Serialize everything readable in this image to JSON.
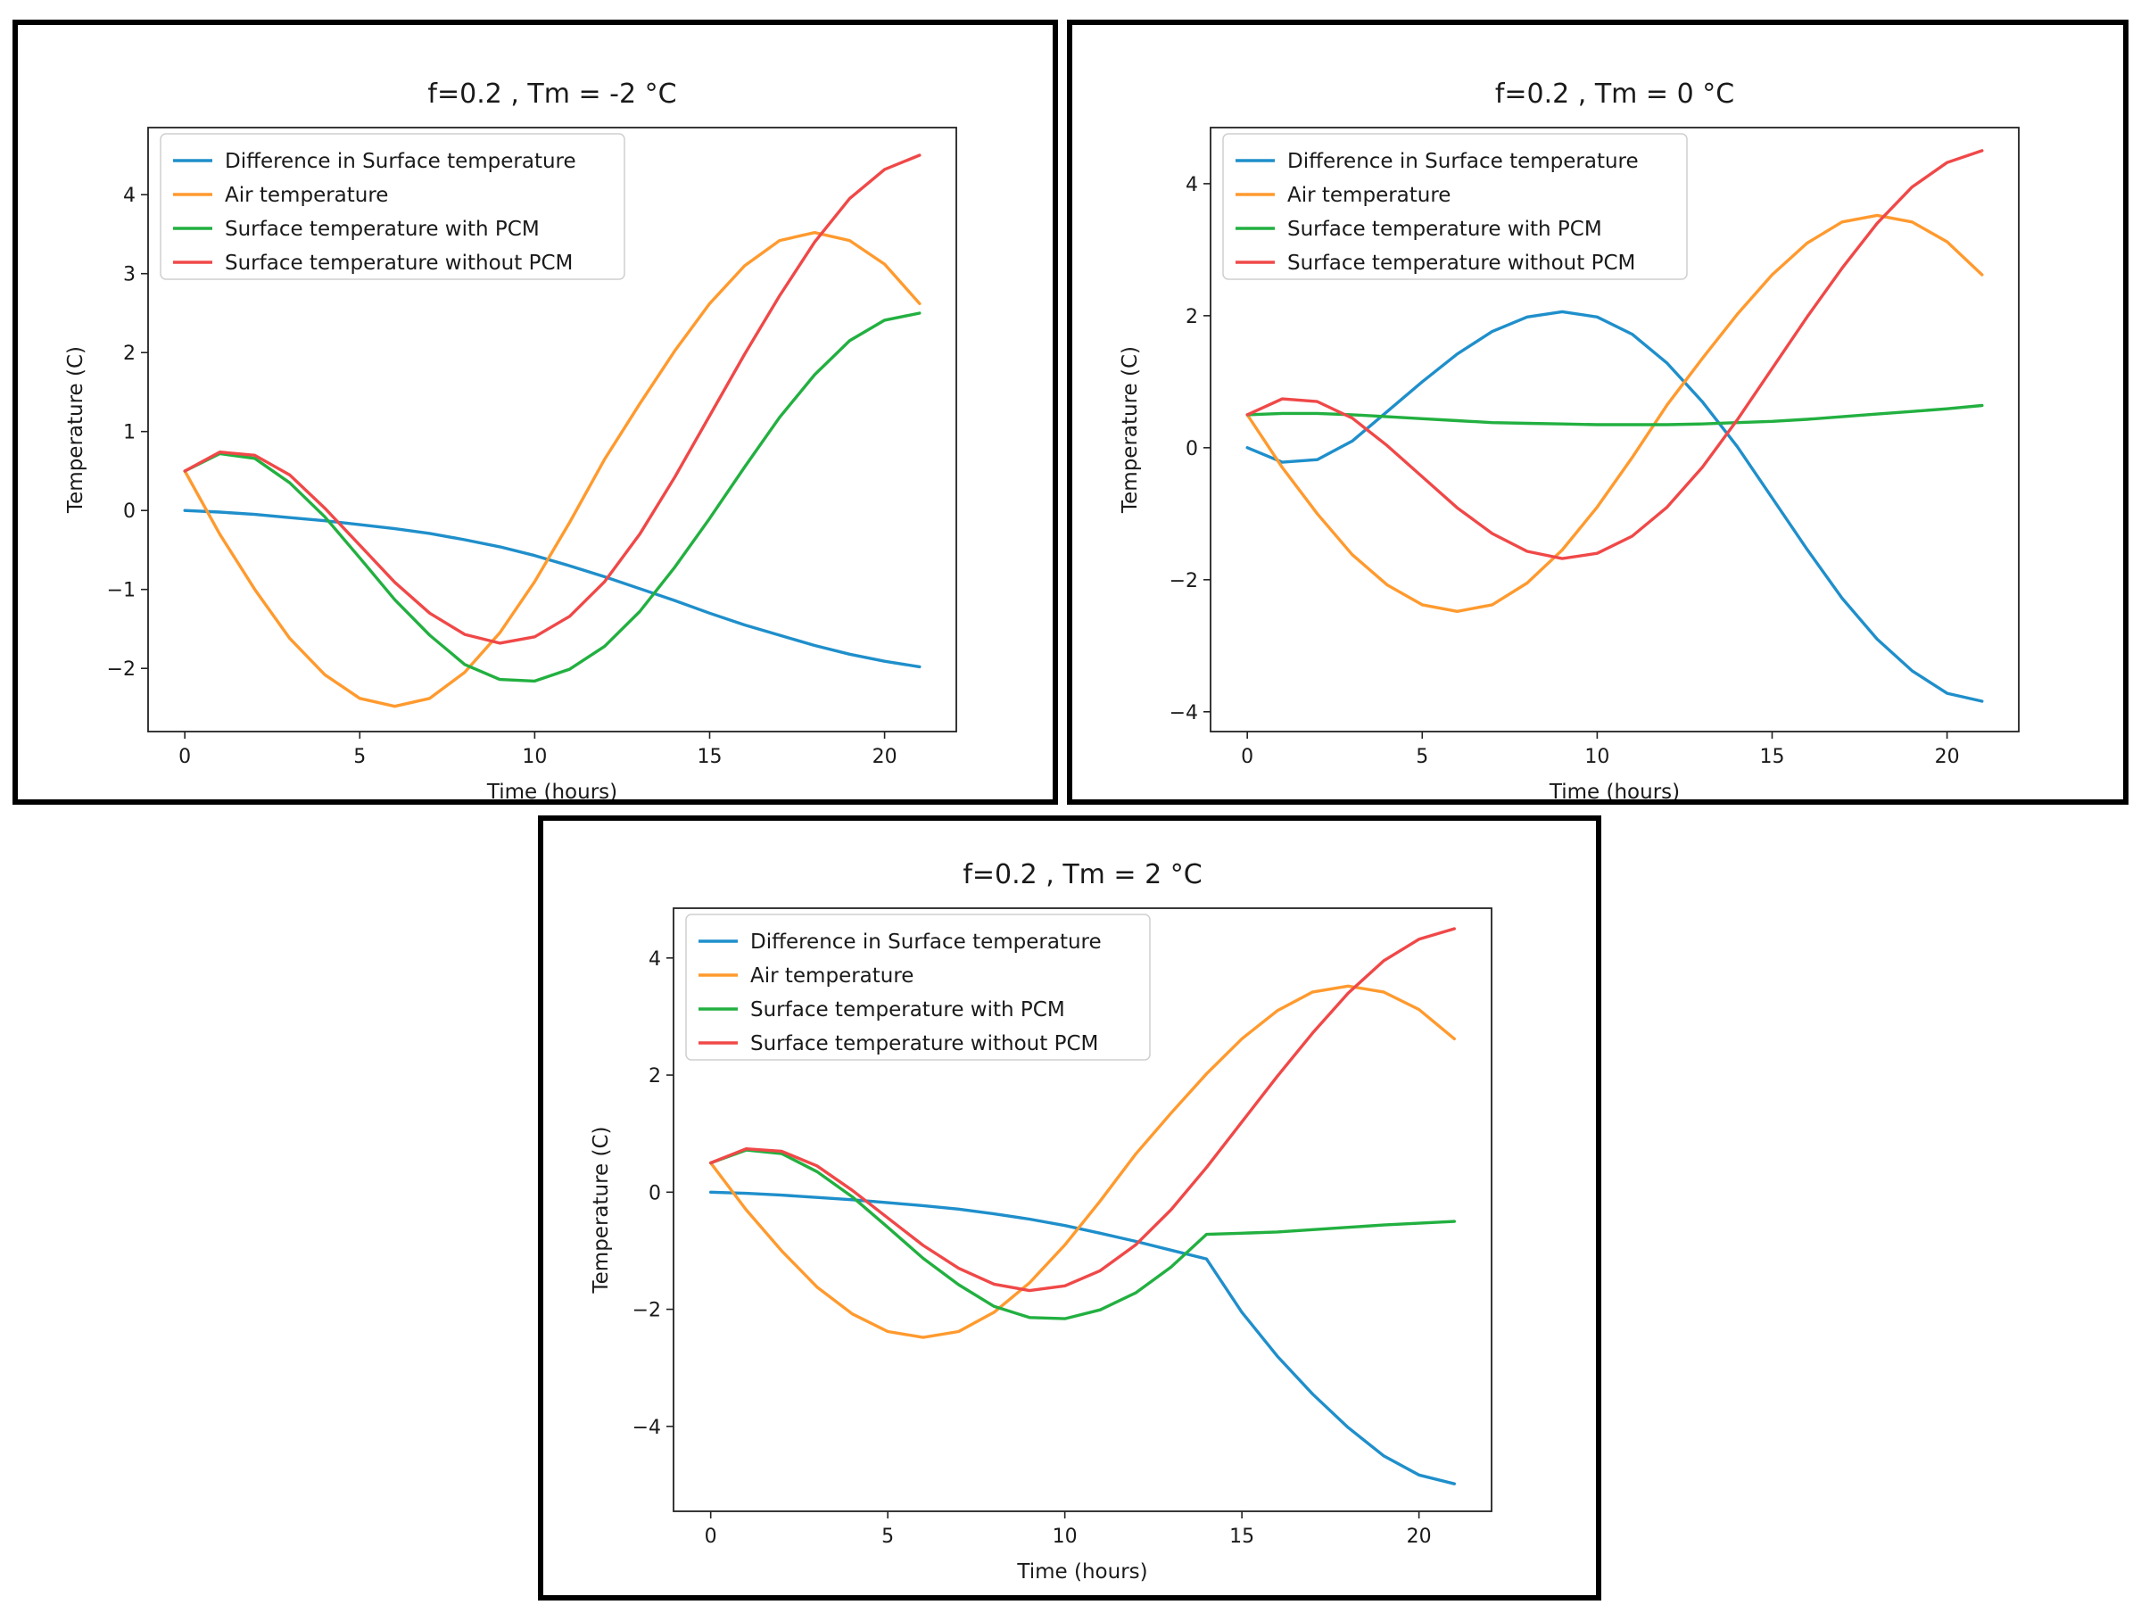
{
  "figure": {
    "panels": [
      "f=0.2 , Tm = -2 °C",
      "f=0.2 , Tm = 0 °C",
      "f=0.2 , Tm = 2 °C"
    ]
  },
  "colors": {
    "difference": "#1f8fcb",
    "air": "#ff9a2e",
    "with_pcm": "#22b040",
    "without_pcm": "#f04848",
    "frame": "#000000"
  },
  "chart_data": [
    {
      "type": "line",
      "title": "f=0.2 , Tm = -2 °C",
      "xlabel": "Time (hours)",
      "ylabel": "Temperature (C)",
      "xlim": [
        -1.05,
        22.05
      ],
      "ylim": [
        -2.8,
        4.85
      ],
      "xticks": [
        0,
        5,
        10,
        15,
        20
      ],
      "xtick_labels": [
        "0",
        "5",
        "10",
        "15",
        "20"
      ],
      "yticks": [
        -2,
        -1,
        0,
        1,
        2,
        3,
        4
      ],
      "ytick_labels": [
        "−2",
        "−1",
        "0",
        "1",
        "2",
        "3",
        "4"
      ],
      "legend_position": "upper left",
      "grid": false,
      "x": [
        0,
        1,
        2,
        3,
        4,
        5,
        6,
        7,
        8,
        9,
        10,
        11,
        12,
        13,
        14,
        15,
        16,
        17,
        18,
        19,
        20,
        21
      ],
      "series": [
        {
          "name": "Difference in Surface temperature",
          "color_key": "difference",
          "values": [
            0.0,
            -0.02,
            -0.05,
            -0.09,
            -0.13,
            -0.18,
            -0.23,
            -0.29,
            -0.37,
            -0.46,
            -0.57,
            -0.7,
            -0.84,
            -0.99,
            -1.14,
            -1.3,
            -1.45,
            -1.58,
            -1.71,
            -1.82,
            -1.91,
            -1.98
          ]
        },
        {
          "name": "Air temperature",
          "color_key": "air",
          "values": [
            0.5,
            -0.3,
            -1.0,
            -1.62,
            -2.08,
            -2.38,
            -2.48,
            -2.38,
            -2.05,
            -1.55,
            -0.9,
            -0.15,
            0.65,
            1.35,
            2.02,
            2.62,
            3.1,
            3.42,
            3.52,
            3.42,
            3.12,
            2.62
          ]
        },
        {
          "name": "Surface temperature with PCM",
          "color_key": "with_pcm",
          "values": [
            0.5,
            0.72,
            0.66,
            0.35,
            -0.08,
            -0.6,
            -1.13,
            -1.58,
            -1.95,
            -2.14,
            -2.16,
            -2.01,
            -1.72,
            -1.28,
            -0.72,
            -0.1,
            0.55,
            1.18,
            1.72,
            2.15,
            2.41,
            2.5
          ]
        },
        {
          "name": "Surface temperature without PCM",
          "color_key": "without_pcm",
          "values": [
            0.5,
            0.74,
            0.7,
            0.45,
            0.03,
            -0.44,
            -0.91,
            -1.3,
            -1.57,
            -1.68,
            -1.6,
            -1.34,
            -0.9,
            -0.3,
            0.42,
            1.2,
            1.98,
            2.72,
            3.4,
            3.95,
            4.32,
            4.5
          ]
        }
      ]
    },
    {
      "type": "line",
      "title": "f=0.2 , Tm = 0 °C",
      "xlabel": "Time (hours)",
      "ylabel": "Temperature (C)",
      "xlim": [
        -1.05,
        22.05
      ],
      "ylim": [
        -4.3,
        4.85
      ],
      "xticks": [
        0,
        5,
        10,
        15,
        20
      ],
      "xtick_labels": [
        "0",
        "5",
        "10",
        "15",
        "20"
      ],
      "yticks": [
        -4,
        -2,
        0,
        2,
        4
      ],
      "ytick_labels": [
        "−4",
        "−2",
        "0",
        "2",
        "4"
      ],
      "legend_position": "upper left",
      "grid": false,
      "x": [
        0,
        1,
        2,
        3,
        4,
        5,
        6,
        7,
        8,
        9,
        10,
        11,
        12,
        13,
        14,
        15,
        16,
        17,
        18,
        19,
        20,
        21
      ],
      "series": [
        {
          "name": "Difference in Surface temperature",
          "color_key": "difference",
          "values": [
            0.0,
            -0.22,
            -0.18,
            0.1,
            0.55,
            1.0,
            1.42,
            1.76,
            1.98,
            2.06,
            1.98,
            1.72,
            1.28,
            0.7,
            0.02,
            -0.76,
            -1.54,
            -2.28,
            -2.9,
            -3.38,
            -3.72,
            -3.84
          ]
        },
        {
          "name": "Air temperature",
          "color_key": "air",
          "values": [
            0.5,
            -0.3,
            -1.0,
            -1.62,
            -2.08,
            -2.38,
            -2.48,
            -2.38,
            -2.05,
            -1.55,
            -0.9,
            -0.15,
            0.65,
            1.35,
            2.02,
            2.62,
            3.1,
            3.42,
            3.52,
            3.42,
            3.12,
            2.62
          ]
        },
        {
          "name": "Surface temperature with PCM",
          "color_key": "with_pcm",
          "values": [
            0.5,
            0.52,
            0.52,
            0.5,
            0.47,
            0.44,
            0.41,
            0.38,
            0.37,
            0.36,
            0.35,
            0.35,
            0.35,
            0.36,
            0.38,
            0.4,
            0.43,
            0.47,
            0.51,
            0.55,
            0.59,
            0.64
          ]
        },
        {
          "name": "Surface temperature without PCM",
          "color_key": "without_pcm",
          "values": [
            0.5,
            0.74,
            0.7,
            0.45,
            0.03,
            -0.44,
            -0.91,
            -1.3,
            -1.57,
            -1.68,
            -1.6,
            -1.34,
            -0.9,
            -0.3,
            0.42,
            1.2,
            1.98,
            2.72,
            3.4,
            3.95,
            4.32,
            4.5
          ]
        }
      ]
    },
    {
      "type": "line",
      "title": "f=0.2 , Tm = 2 °C",
      "xlabel": "Time (hours)",
      "ylabel": "Temperature (C)",
      "xlim": [
        -1.05,
        22.05
      ],
      "ylim": [
        -5.45,
        4.85
      ],
      "xticks": [
        0,
        5,
        10,
        15,
        20
      ],
      "xtick_labels": [
        "0",
        "5",
        "10",
        "15",
        "20"
      ],
      "yticks": [
        -4,
        -2,
        0,
        2,
        4
      ],
      "ytick_labels": [
        "−4",
        "−2",
        "0",
        "2",
        "4"
      ],
      "legend_position": "upper left",
      "grid": false,
      "x": [
        0,
        1,
        2,
        3,
        4,
        5,
        6,
        7,
        8,
        9,
        10,
        11,
        12,
        13,
        14,
        15,
        16,
        17,
        18,
        19,
        20,
        21
      ],
      "series": [
        {
          "name": "Difference in Surface temperature",
          "color_key": "difference",
          "values": [
            0.0,
            -0.02,
            -0.05,
            -0.09,
            -0.13,
            -0.18,
            -0.23,
            -0.29,
            -0.37,
            -0.46,
            -0.57,
            -0.7,
            -0.84,
            -0.99,
            -1.14,
            -2.05,
            -2.8,
            -3.45,
            -4.02,
            -4.5,
            -4.83,
            -4.98
          ]
        },
        {
          "name": "Air temperature",
          "color_key": "air",
          "values": [
            0.5,
            -0.3,
            -1.0,
            -1.62,
            -2.08,
            -2.38,
            -2.48,
            -2.38,
            -2.05,
            -1.55,
            -0.9,
            -0.15,
            0.65,
            1.35,
            2.02,
            2.62,
            3.1,
            3.42,
            3.52,
            3.42,
            3.12,
            2.62
          ]
        },
        {
          "name": "Surface temperature with PCM",
          "color_key": "with_pcm",
          "values": [
            0.5,
            0.72,
            0.66,
            0.35,
            -0.08,
            -0.6,
            -1.13,
            -1.58,
            -1.95,
            -2.14,
            -2.16,
            -2.01,
            -1.72,
            -1.28,
            -0.72,
            -0.7,
            -0.68,
            -0.64,
            -0.6,
            -0.56,
            -0.53,
            -0.5
          ]
        },
        {
          "name": "Surface temperature without PCM",
          "color_key": "without_pcm",
          "values": [
            0.5,
            0.74,
            0.7,
            0.45,
            0.03,
            -0.44,
            -0.91,
            -1.3,
            -1.57,
            -1.68,
            -1.6,
            -1.34,
            -0.9,
            -0.3,
            0.42,
            1.2,
            1.98,
            2.72,
            3.4,
            3.95,
            4.32,
            4.5
          ]
        }
      ]
    }
  ]
}
